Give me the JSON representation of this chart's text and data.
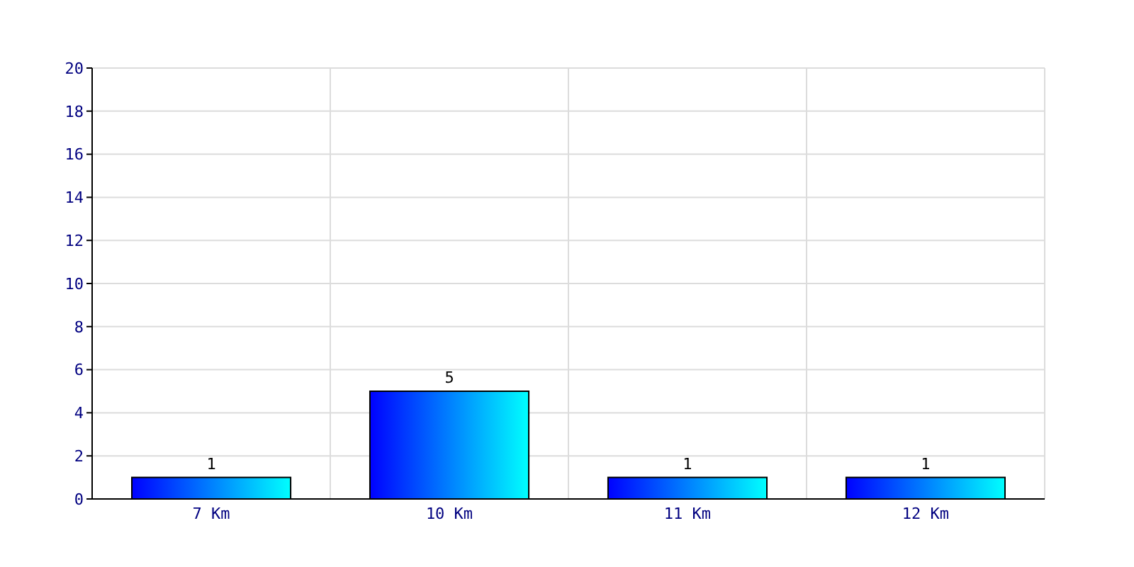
{
  "chart_data": {
    "type": "bar",
    "categories": [
      "7 Km",
      "10 Km",
      "11 Km",
      "12 Km"
    ],
    "values": [
      1,
      5,
      1,
      1
    ],
    "color": "#0080ff",
    "ylim": [
      0,
      20
    ],
    "yticks": [
      0,
      2,
      4,
      6,
      8,
      10,
      12,
      14,
      16,
      18,
      20
    ],
    "grid": true,
    "data_labels": true
  }
}
